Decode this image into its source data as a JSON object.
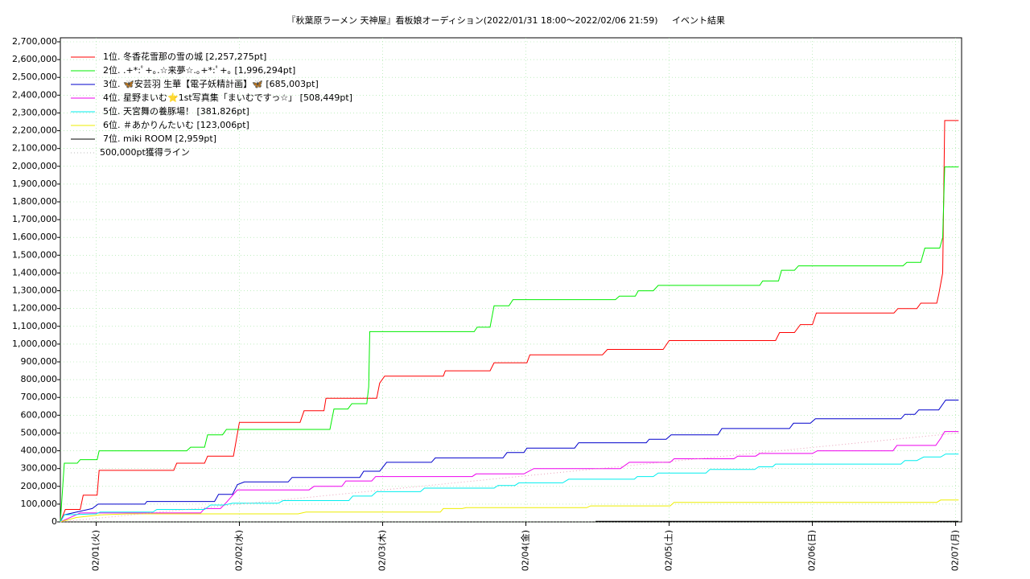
{
  "chart_data": {
    "type": "line",
    "title": "『秋葉原ラーメン 天神屋』看板娘オーディション(2022/01/31 18:00〜2022/02/06 21:59)",
    "subtitle": "イベント結果",
    "xlim": [
      "01/31 18:00",
      "02/07 01:00"
    ],
    "xticks": [
      {
        "value": "02/01 00:00",
        "label": "02/01(火)"
      },
      {
        "value": "02/02 00:00",
        "label": "02/02(水)"
      },
      {
        "value": "02/03 00:00",
        "label": "02/03(木)"
      },
      {
        "value": "02/04 00:00",
        "label": "02/04(金)"
      },
      {
        "value": "02/05 00:00",
        "label": "02/05(土)"
      },
      {
        "value": "02/06 00:00",
        "label": "02/06(日)"
      },
      {
        "value": "02/07 00:00",
        "label": "02/07(月)"
      }
    ],
    "ylim": [
      0,
      2700000
    ],
    "yticks": [
      0,
      {
        "value": 100000,
        "label": "100,000"
      },
      {
        "value": 200000,
        "label": "200,000"
      },
      {
        "value": 300000,
        "label": "300,000"
      },
      {
        "value": 400000,
        "label": "400,000"
      },
      {
        "value": 500000,
        "label": "500,000"
      },
      {
        "value": 600000,
        "label": "600,000"
      },
      {
        "value": 700000,
        "label": "700,000"
      },
      {
        "value": 800000,
        "label": "800,000"
      },
      {
        "value": 900000,
        "label": "900,000"
      },
      {
        "value": 1000000,
        "label": "1,000,000"
      },
      {
        "value": 1100000,
        "label": "1,100,000"
      },
      {
        "value": 1200000,
        "label": "1,200,000"
      },
      {
        "value": 1300000,
        "label": "1,300,000"
      },
      {
        "value": 1400000,
        "label": "1,400,000"
      },
      {
        "value": 1500000,
        "label": "1,500,000"
      },
      {
        "value": 1600000,
        "label": "1,600,000"
      },
      {
        "value": 1700000,
        "label": "1,700,000"
      },
      {
        "value": 1800000,
        "label": "1,800,000"
      },
      {
        "value": 1900000,
        "label": "1,900,000"
      },
      {
        "value": 2000000,
        "label": "2,000,000"
      },
      {
        "value": 2100000,
        "label": "2,100,000"
      },
      {
        "value": 2200000,
        "label": "2,200,000"
      },
      {
        "value": 2300000,
        "label": "2,300,000"
      },
      {
        "value": 2400000,
        "label": "2,400,000"
      },
      {
        "value": 2500000,
        "label": "2,500,000"
      },
      {
        "value": 2600000,
        "label": "2,600,000"
      },
      {
        "value": 2700000,
        "label": "2,700,000"
      }
    ],
    "grid": true,
    "legend": "upper left",
    "series": [
      {
        "name": "1位. 冬香花雪那の雪の城 [2,257,275pt]",
        "color": "#ff0000",
        "x": [
          "01/31 18:00",
          "01/31 18:50",
          "01/31 21:20",
          "01/31 21:50",
          "02/01 00:10",
          "02/01 00:30",
          "02/01 13:00",
          "02/01 13:30",
          "02/01 18:10",
          "02/01 18:40",
          "02/01 23:00",
          "02/02 00:00",
          "02/02 10:10",
          "02/02 10:50",
          "02/02 14:10",
          "02/02 14:30",
          "02/02 23:00",
          "02/02 23:30",
          "02/03 00:20",
          "02/03 10:10",
          "02/03 10:30",
          "02/03 18:00",
          "02/03 18:40",
          "02/04 00:10",
          "02/04 00:40",
          "02/04 12:50",
          "02/04 13:40",
          "02/04 23:00",
          "02/05 00:00",
          "02/05 17:50",
          "02/05 18:30",
          "02/05 21:00",
          "02/05 22:00",
          "02/06 00:00",
          "02/06 00:40",
          "02/06 13:40",
          "02/06 14:20",
          "02/06 17:30",
          "02/06 18:10",
          "02/06 20:50",
          "02/06 21:10",
          "02/06 21:50",
          "02/06 22:10",
          "02/07 00:30"
        ],
        "values": [
          0,
          70000,
          70000,
          150000,
          150000,
          290000,
          290000,
          330000,
          330000,
          370000,
          370000,
          560000,
          560000,
          625000,
          625000,
          695000,
          695000,
          780000,
          820000,
          820000,
          850000,
          850000,
          895000,
          895000,
          940000,
          940000,
          970000,
          970000,
          1020000,
          1020000,
          1065000,
          1065000,
          1110000,
          1110000,
          1175000,
          1175000,
          1200000,
          1200000,
          1230000,
          1230000,
          1280000,
          1400000,
          2257275,
          2257275
        ]
      },
      {
        "name": "2位. .+*:ﾟ+｡.☆来夢☆.｡+*:ﾟ+｡ [1,996,294pt]",
        "color": "#00ee00",
        "x": [
          "01/31 18:00",
          "01/31 18:40",
          "01/31 20:50",
          "01/31 21:20",
          "02/01 00:10",
          "02/01 00:30",
          "02/01 15:10",
          "02/01 15:50",
          "02/01 18:10",
          "02/01 18:40",
          "02/01 21:10",
          "02/01 21:50",
          "02/02 15:10",
          "02/02 15:50",
          "02/02 18:10",
          "02/02 18:50",
          "02/02 21:20",
          "02/02 21:40",
          "02/02 21:50",
          "02/03 15:20",
          "02/03 15:50",
          "02/03 18:00",
          "02/03 18:40",
          "02/03 21:10",
          "02/03 21:50",
          "02/04 15:00",
          "02/04 15:40",
          "02/04 18:20",
          "02/04 18:50",
          "02/04 21:20",
          "02/04 22:10",
          "02/05 15:10",
          "02/05 15:40",
          "02/05 18:20",
          "02/05 18:50",
          "02/05 21:00",
          "02/05 21:40",
          "02/06 15:10",
          "02/06 15:50",
          "02/06 18:10",
          "02/06 18:50",
          "02/06 21:20",
          "02/06 21:50",
          "02/06 22:10",
          "02/07 00:30"
        ],
        "values": [
          0,
          330000,
          330000,
          350000,
          350000,
          400000,
          400000,
          420000,
          420000,
          490000,
          490000,
          520000,
          520000,
          635000,
          635000,
          665000,
          665000,
          760000,
          1070000,
          1070000,
          1095000,
          1095000,
          1215000,
          1215000,
          1250000,
          1250000,
          1270000,
          1270000,
          1300000,
          1300000,
          1330000,
          1330000,
          1355000,
          1355000,
          1415000,
          1415000,
          1440000,
          1440000,
          1460000,
          1460000,
          1540000,
          1540000,
          1600000,
          1996294,
          1996294
        ]
      },
      {
        "name": "3位. 🦋安芸羽 生華【電子妖精計画】🦋 [685,003pt]",
        "color": "#0000cc",
        "x": [
          "01/31 18:00",
          "01/31 18:40",
          "01/31 21:20",
          "01/31 23:20",
          "02/01 00:20",
          "02/01 08:10",
          "02/01 08:30",
          "02/01 19:50",
          "02/01 20:30",
          "02/01 22:50",
          "02/01 23:40",
          "02/02 00:50",
          "02/02 08:10",
          "02/02 08:50",
          "02/02 20:10",
          "02/02 20:50",
          "02/02 23:30",
          "02/03 00:40",
          "02/03 08:10",
          "02/03 08:50",
          "02/03 20:10",
          "02/03 20:50",
          "02/03 23:40",
          "02/04 00:10",
          "02/04 08:10",
          "02/04 08:50",
          "02/04 20:10",
          "02/04 20:40",
          "02/04 23:30",
          "02/05 00:20",
          "02/05 08:10",
          "02/05 08:50",
          "02/05 20:10",
          "02/05 20:50",
          "02/05 23:40",
          "02/06 00:30",
          "02/06 14:50",
          "02/06 15:30",
          "02/06 17:10",
          "02/06 17:50",
          "02/06 21:10",
          "02/06 22:20",
          "02/07 00:30"
        ],
        "values": [
          0,
          40000,
          60000,
          75000,
          100000,
          100000,
          115000,
          115000,
          155000,
          155000,
          210000,
          225000,
          225000,
          250000,
          250000,
          285000,
          285000,
          335000,
          335000,
          360000,
          360000,
          390000,
          390000,
          415000,
          415000,
          445000,
          445000,
          465000,
          465000,
          490000,
          490000,
          525000,
          525000,
          555000,
          555000,
          580000,
          580000,
          605000,
          605000,
          630000,
          630000,
          685003,
          685003
        ]
      },
      {
        "name": "4位. 星野まいむ⭐1st写真集「まいむですっ☆」 [508,449pt]",
        "color": "#ee00ee",
        "x": [
          "01/31 18:00",
          "01/31 19:20",
          "01/31 21:20",
          "02/01 17:30",
          "02/01 18:10",
          "02/01 20:50",
          "02/01 21:50",
          "02/01 23:40",
          "02/02 11:40",
          "02/02 12:30",
          "02/02 17:10",
          "02/02 17:50",
          "02/02 22:10",
          "02/02 22:50",
          "02/03 15:00",
          "02/03 15:40",
          "02/03 23:40",
          "02/04 01:20",
          "02/04 15:50",
          "02/04 17:20",
          "02/05 00:10",
          "02/05 00:50",
          "02/05 10:50",
          "02/05 11:30",
          "02/05 14:30",
          "02/05 15:10",
          "02/06 00:00",
          "02/06 00:50",
          "02/06 13:30",
          "02/06 14:10",
          "02/06 20:40",
          "02/06 21:30",
          "02/06 22:10",
          "02/07 00:30"
        ],
        "values": [
          0,
          20000,
          50000,
          50000,
          75000,
          75000,
          110000,
          180000,
          180000,
          200000,
          200000,
          230000,
          230000,
          255000,
          255000,
          270000,
          270000,
          300000,
          300000,
          335000,
          335000,
          355000,
          355000,
          370000,
          370000,
          385000,
          385000,
          400000,
          400000,
          430000,
          430000,
          470000,
          508449,
          508449
        ]
      },
      {
        "name": "5位. 天宮舞の養豚場！ [381,826pt]",
        "color": "#00eeee",
        "x": [
          "01/31 18:00",
          "01/31 18:40",
          "02/01 00:00",
          "02/01 00:40",
          "02/01 09:30",
          "02/01 10:10",
          "02/01 18:10",
          "02/01 19:10",
          "02/01 21:30",
          "02/01 22:50",
          "02/02 06:30",
          "02/02 07:20",
          "02/02 18:20",
          "02/02 19:00",
          "02/02 22:10",
          "02/02 23:00",
          "02/03 06:20",
          "02/03 07:00",
          "02/03 18:40",
          "02/03 19:20",
          "02/03 22:10",
          "02/03 22:50",
          "02/04 06:10",
          "02/04 07:10",
          "02/04 18:10",
          "02/04 18:40",
          "02/04 21:20",
          "02/04 22:10",
          "02/05 06:10",
          "02/05 06:50",
          "02/05 14:20",
          "02/05 15:00",
          "02/05 17:20",
          "02/05 17:50",
          "02/06 14:50",
          "02/06 15:30",
          "02/06 17:30",
          "02/06 18:40",
          "02/06 21:30",
          "02/06 22:20",
          "02/07 00:30"
        ],
        "values": [
          0,
          40000,
          45000,
          55000,
          55000,
          70000,
          70000,
          95000,
          95000,
          105000,
          105000,
          120000,
          120000,
          145000,
          145000,
          170000,
          170000,
          190000,
          190000,
          205000,
          205000,
          220000,
          220000,
          240000,
          240000,
          255000,
          255000,
          275000,
          275000,
          295000,
          295000,
          310000,
          310000,
          325000,
          325000,
          345000,
          345000,
          365000,
          365000,
          381826,
          381826
        ]
      },
      {
        "name": "6位. ＃あかりんたいむ [123,006pt]",
        "color": "#eeee00",
        "x": [
          "01/31 18:00",
          "01/31 20:40",
          "02/01 00:40",
          "02/01 05:20",
          "02/02 09:50",
          "02/02 11:10",
          "02/03 09:40",
          "02/03 10:10",
          "02/03 13:20",
          "02/03 14:00",
          "02/04 10:10",
          "02/04 10:50",
          "02/05 00:10",
          "02/05 00:50",
          "02/06 20:50",
          "02/06 21:30",
          "02/07 00:30"
        ],
        "values": [
          0,
          25000,
          40000,
          45000,
          45000,
          55000,
          55000,
          75000,
          75000,
          80000,
          80000,
          90000,
          90000,
          110000,
          110000,
          123006,
          123006
        ]
      },
      {
        "name": "7位. miki ROOM [2,959pt]",
        "color": "#000000",
        "x": [
          "02/04 11:40",
          "02/07 00:30"
        ],
        "values": [
          2959,
          2959
        ]
      },
      {
        "name": "500,000pt獲得ライン",
        "color": "#e8a0b8",
        "dash": true,
        "x": [
          "01/31 18:00",
          "02/07 00:30"
        ],
        "values": [
          0,
          500000
        ]
      }
    ]
  }
}
